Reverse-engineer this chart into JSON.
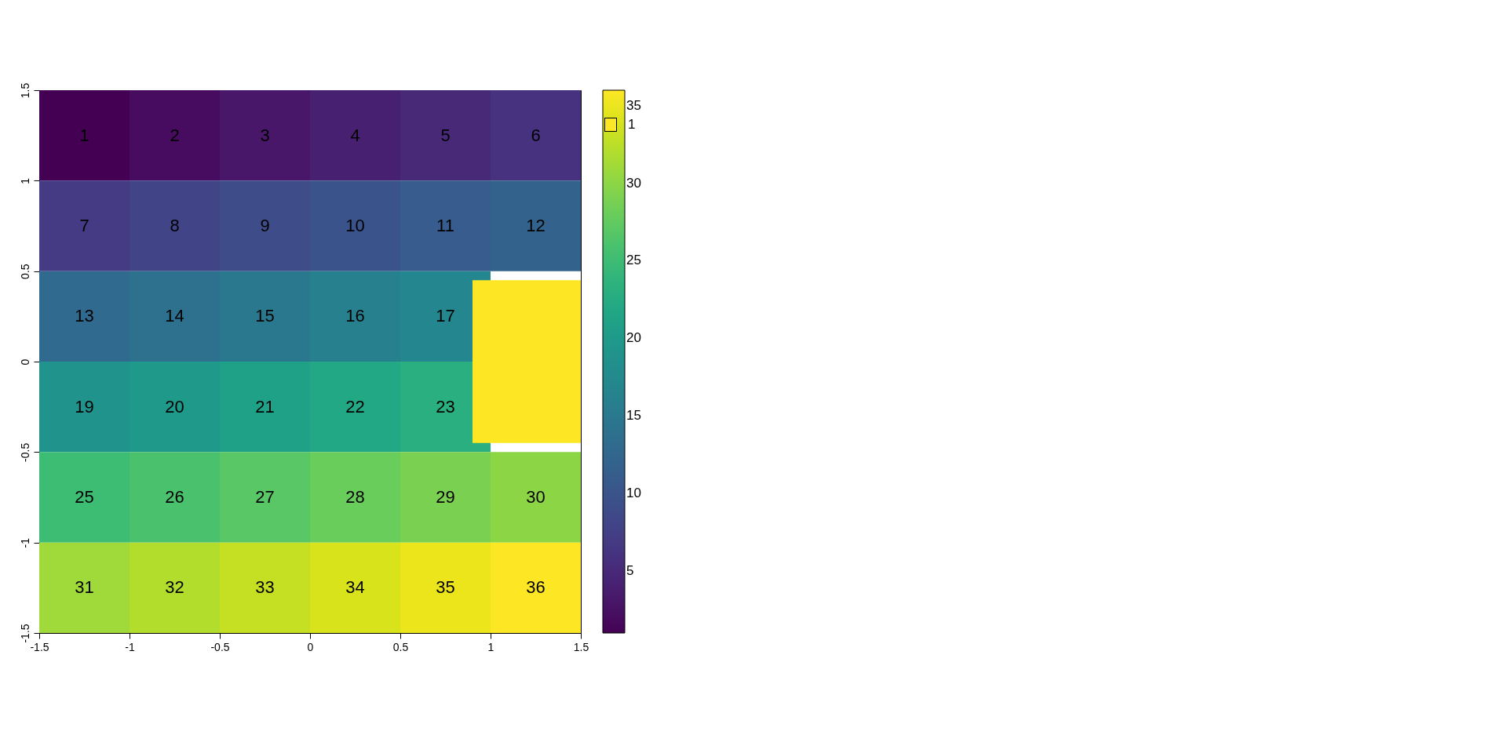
{
  "chart_data": {
    "type": "heatmap",
    "categories": [
      null,
      null,
      null,
      null,
      null,
      null
    ],
    "y_categories": [
      null,
      null,
      null,
      null,
      null,
      null
    ],
    "cells": [
      [
        1,
        2,
        3,
        4,
        5,
        6
      ],
      [
        7,
        8,
        9,
        10,
        11,
        12
      ],
      [
        13,
        14,
        15,
        16,
        17,
        null
      ],
      [
        19,
        20,
        21,
        22,
        23,
        null
      ],
      [
        25,
        26,
        27,
        28,
        29,
        30
      ],
      [
        31,
        32,
        33,
        34,
        35,
        36
      ]
    ],
    "data_labels": true,
    "clim": [
      1,
      36
    ],
    "cticks": [
      5,
      10,
      15,
      20,
      25,
      30,
      35
    ],
    "grid": false,
    "annotations": [
      "1",
      "-1.5",
      "-1",
      "-0.5",
      "0",
      "0.5",
      "1",
      "1.5",
      "-1.5",
      "-1",
      "-0.5",
      "0",
      "0.5",
      "1",
      "1.5"
    ]
  }
}
